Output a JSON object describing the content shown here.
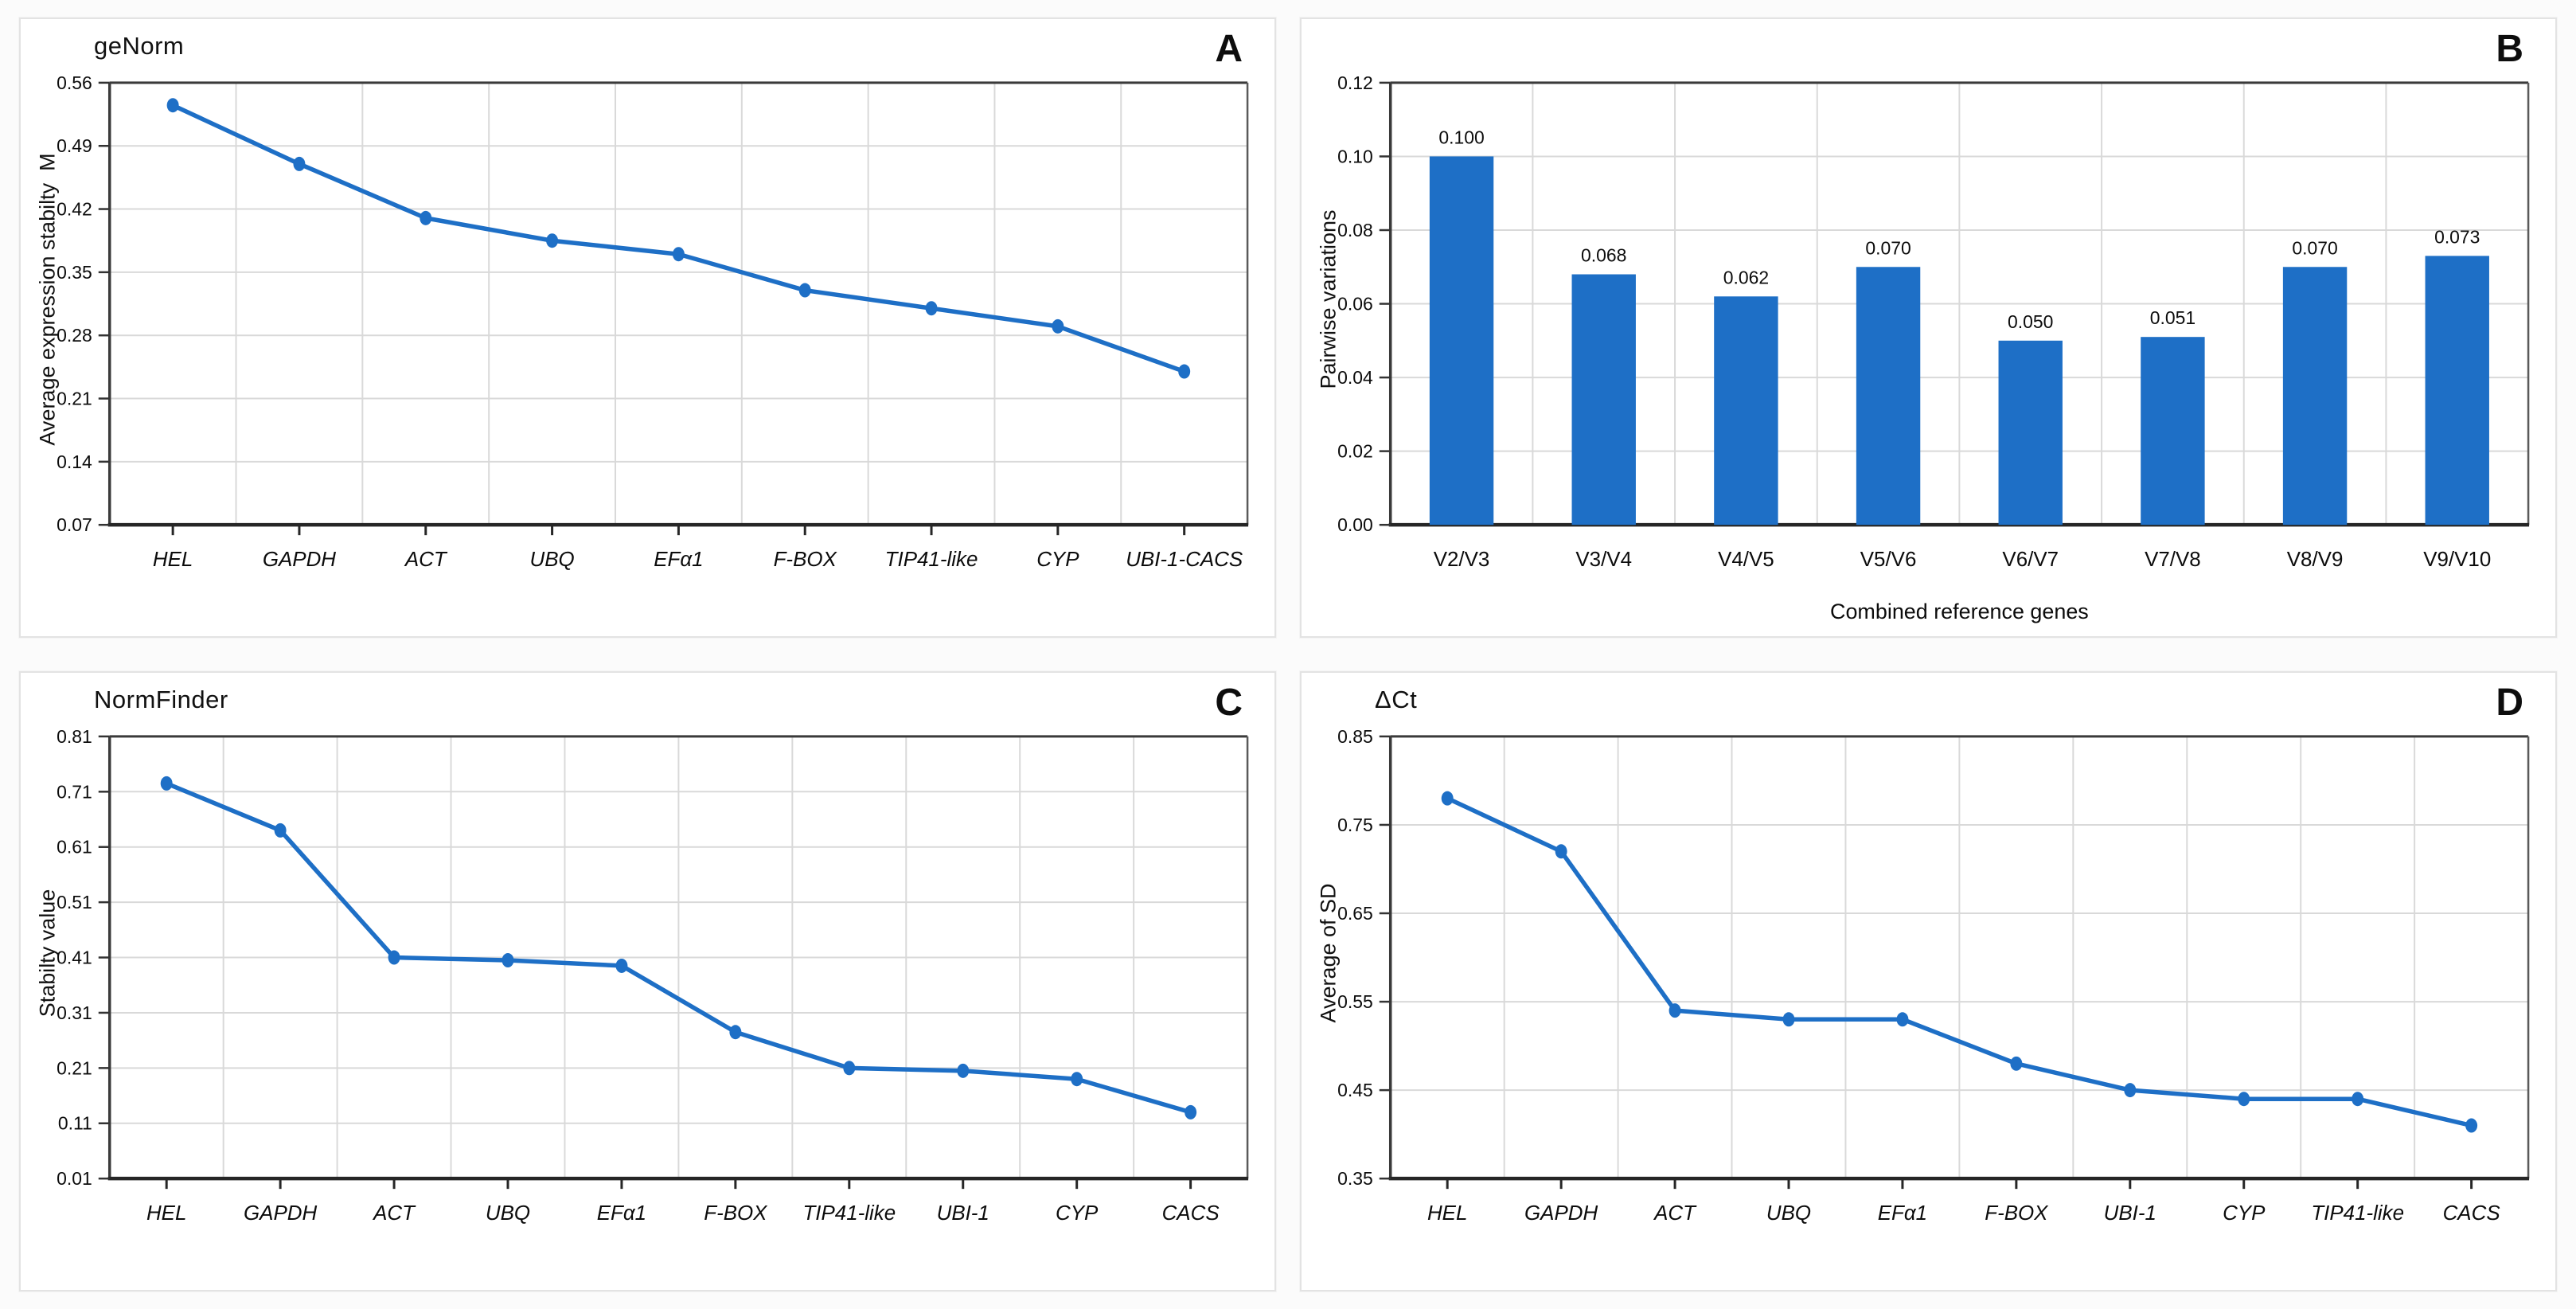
{
  "figure": {
    "background": "#fbfbfb",
    "accent_blue": "#1e6fc6",
    "grid_color": "#d9d9d9",
    "frame_color": "#3a3a3a"
  },
  "chart_data": [
    {
      "panel": "A",
      "corner_label": "A",
      "type": "line",
      "title": "geNorm",
      "categories": [
        "HEL",
        "GAPDH",
        "ACT",
        "UBQ",
        "EFα1",
        "F-BOX",
        "TIP41-like",
        "CYP",
        "UBI-1-CACS"
      ],
      "values": [
        0.535,
        0.47,
        0.41,
        0.385,
        0.37,
        0.33,
        0.31,
        0.29,
        0.24
      ],
      "xlabel": "",
      "ylabel": "Average expression stabilty  M",
      "ylim": [
        0.07,
        0.56
      ],
      "ytick_step": 0.07,
      "xtick_italic": true,
      "grid": true,
      "legend": "none",
      "line_color": "#1e6fc6"
    },
    {
      "panel": "B",
      "corner_label": "B",
      "type": "bar",
      "title": "",
      "categories": [
        "V2/V3",
        "V3/V4",
        "V4/V5",
        "V5/V6",
        "V6/V7",
        "V7/V8",
        "V8/V9",
        "V9/V10"
      ],
      "values": [
        0.1,
        0.068,
        0.062,
        0.07,
        0.05,
        0.051,
        0.07,
        0.073
      ],
      "data_labels": [
        "0.100",
        "0.068",
        "0.062",
        "0.070",
        "0.050",
        "0.051",
        "0.070",
        "0.073"
      ],
      "xlabel": "Combined reference genes",
      "ylabel": "Pairwise variations",
      "ylim": [
        0.0,
        0.12
      ],
      "ytick_step": 0.02,
      "xtick_italic": false,
      "grid": true,
      "legend": "none",
      "bar_color": "#1e6fc6"
    },
    {
      "panel": "C",
      "corner_label": "C",
      "type": "line",
      "title": "NormFinder",
      "categories": [
        "HEL",
        "GAPDH",
        "ACT",
        "UBQ",
        "EFα1",
        "F-BOX",
        "TIP41-like",
        "UBI-1",
        "CYP",
        "CACS"
      ],
      "values": [
        0.725,
        0.64,
        0.41,
        0.405,
        0.395,
        0.275,
        0.21,
        0.205,
        0.19,
        0.13
      ],
      "xlabel": "",
      "ylabel": "Stabilty value",
      "ylim": [
        0.01,
        0.81
      ],
      "ytick_step": 0.1,
      "xtick_italic": true,
      "grid": true,
      "legend": "none",
      "line_color": "#1e6fc6"
    },
    {
      "panel": "D",
      "corner_label": "D",
      "type": "line",
      "title": "ΔCt",
      "categories": [
        "HEL",
        "GAPDH",
        "ACT",
        "UBQ",
        "EFα1",
        "F-BOX",
        "UBI-1",
        "CYP",
        "TIP41-like",
        "CACS"
      ],
      "values": [
        0.78,
        0.72,
        0.54,
        0.53,
        0.53,
        0.48,
        0.45,
        0.44,
        0.44,
        0.41
      ],
      "xlabel": "",
      "ylabel": "Average of SD",
      "ylim": [
        0.35,
        0.85
      ],
      "ytick_step": 0.1,
      "xtick_italic": true,
      "grid": true,
      "legend": "none",
      "line_color": "#1e6fc6"
    }
  ]
}
